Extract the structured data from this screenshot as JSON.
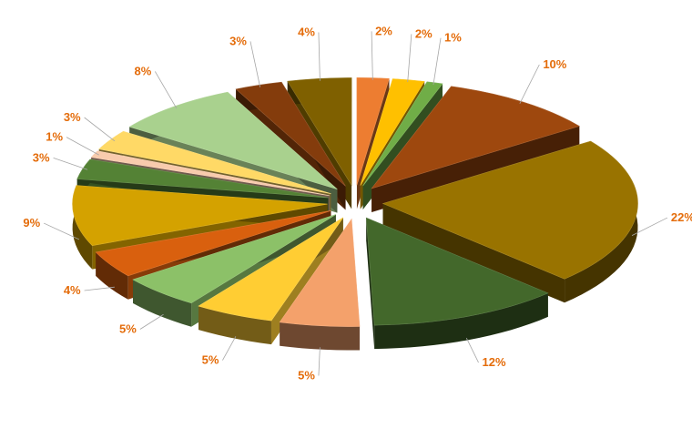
{
  "chart_data": {
    "type": "pie",
    "style": "3d-exploded",
    "legend": "none",
    "label_color": "#E46C0A",
    "slices": [
      {
        "label": "2%",
        "value": 2,
        "color": "#ED7D31"
      },
      {
        "label": "2%",
        "value": 2,
        "color": "#FFC000"
      },
      {
        "label": "1%",
        "value": 1,
        "color": "#70AD47"
      },
      {
        "label": "10%",
        "value": 10,
        "color": "#9E480E"
      },
      {
        "label": "22%",
        "value": 22,
        "color": "#997300"
      },
      {
        "label": "12%",
        "value": 12,
        "color": "#43682B"
      },
      {
        "label": "5%",
        "value": 5,
        "color": "#F4A16B"
      },
      {
        "label": "5%",
        "value": 5,
        "color": "#FFCD33"
      },
      {
        "label": "5%",
        "value": 5,
        "color": "#8CC168"
      },
      {
        "label": "4%",
        "value": 4,
        "color": "#D9600E"
      },
      {
        "label": "9%",
        "value": 9,
        "color": "#D4A200"
      },
      {
        "label": "3%",
        "value": 3,
        "color": "#548235"
      },
      {
        "label": "1%",
        "value": 1,
        "color": "#F8CBAD"
      },
      {
        "label": "3%",
        "value": 3,
        "color": "#FFD966"
      },
      {
        "label": "8%",
        "value": 8,
        "color": "#A9D18E"
      },
      {
        "label": "3%",
        "value": 3,
        "color": "#843C0C"
      },
      {
        "label": "4%",
        "value": 4,
        "color": "#7F6000"
      }
    ]
  }
}
